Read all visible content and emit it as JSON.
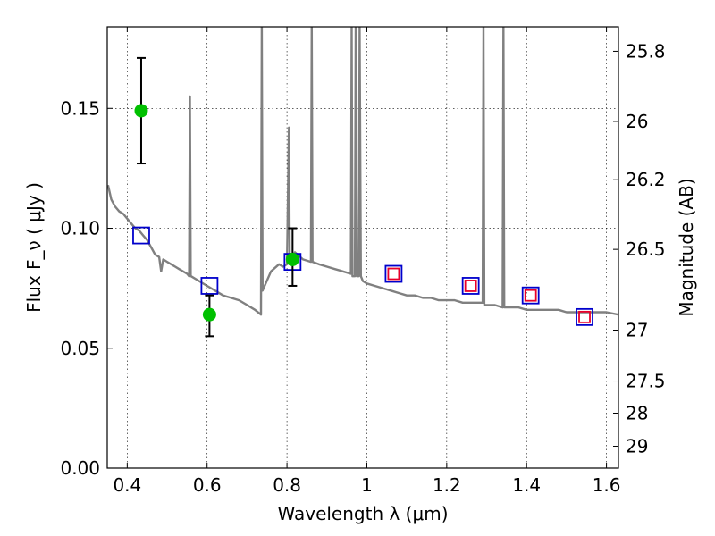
{
  "chart_data": {
    "type": "scatter",
    "xlabel": "Wavelength  λ (μm)",
    "ylabel": "Flux  F_ν  ( μJy )",
    "y2label": "Magnitude (AB)",
    "xlim": [
      0.35,
      1.63
    ],
    "ylim": [
      0.0,
      0.184
    ],
    "xticks": [
      0.4,
      0.6,
      0.8,
      1.0,
      1.2,
      1.4,
      1.6
    ],
    "xtick_labels": [
      "0.4",
      "0.6",
      "0.8",
      "1",
      "1.2",
      "1.4",
      "1.6"
    ],
    "yticks": [
      0.0,
      0.05,
      0.1,
      0.15
    ],
    "ytick_labels": [
      "0.00",
      "0.05",
      "0.10",
      "0.15"
    ],
    "y2ticks": [
      {
        "label": "25.8",
        "mag": 25.8
      },
      {
        "label": "26",
        "mag": 26.0
      },
      {
        "label": "26.2",
        "mag": 26.2
      },
      {
        "label": "26.5",
        "mag": 26.5
      },
      {
        "label": "27",
        "mag": 27.0
      },
      {
        "label": "27.5",
        "mag": 27.5
      },
      {
        "label": "28",
        "mag": 28.0
      },
      {
        "label": "29",
        "mag": 29.0
      }
    ],
    "grid": true,
    "series": [
      {
        "kind": "line",
        "color": "#808080",
        "points": [
          [
            0.352,
            0.118
          ],
          [
            0.36,
            0.112
          ],
          [
            0.37,
            0.109
          ],
          [
            0.38,
            0.107
          ],
          [
            0.39,
            0.106
          ],
          [
            0.4,
            0.104
          ],
          [
            0.41,
            0.102
          ],
          [
            0.42,
            0.1
          ],
          [
            0.43,
            0.099
          ],
          [
            0.44,
            0.097
          ],
          [
            0.45,
            0.095
          ],
          [
            0.46,
            0.092
          ],
          [
            0.47,
            0.089
          ],
          [
            0.48,
            0.088
          ],
          [
            0.485,
            0.082
          ],
          [
            0.49,
            0.087
          ],
          [
            0.5,
            0.086
          ],
          [
            0.51,
            0.085
          ],
          [
            0.52,
            0.084
          ],
          [
            0.53,
            0.083
          ],
          [
            0.54,
            0.082
          ],
          [
            0.55,
            0.081
          ],
          [
            0.555,
            0.08
          ],
          [
            0.557,
            0.155
          ],
          [
            0.559,
            0.08
          ],
          [
            0.56,
            0.08
          ],
          [
            0.58,
            0.078
          ],
          [
            0.6,
            0.076
          ],
          [
            0.62,
            0.074
          ],
          [
            0.64,
            0.072
          ],
          [
            0.66,
            0.071
          ],
          [
            0.68,
            0.07
          ],
          [
            0.7,
            0.068
          ],
          [
            0.72,
            0.066
          ],
          [
            0.735,
            0.064
          ],
          [
            0.737,
            0.184
          ],
          [
            0.739,
            0.074
          ],
          [
            0.76,
            0.082
          ],
          [
            0.78,
            0.085
          ],
          [
            0.79,
            0.084
          ],
          [
            0.8,
            0.085
          ],
          [
            0.805,
            0.142
          ],
          [
            0.807,
            0.085
          ],
          [
            0.82,
            0.09
          ],
          [
            0.84,
            0.087
          ],
          [
            0.86,
            0.086
          ],
          [
            0.862,
            0.184
          ],
          [
            0.864,
            0.086
          ],
          [
            0.88,
            0.085
          ],
          [
            0.9,
            0.084
          ],
          [
            0.92,
            0.083
          ],
          [
            0.94,
            0.082
          ],
          [
            0.96,
            0.081
          ],
          [
            0.962,
            0.184
          ],
          [
            0.964,
            0.08
          ],
          [
            0.97,
            0.08
          ],
          [
            0.972,
            0.184
          ],
          [
            0.975,
            0.08
          ],
          [
            0.98,
            0.08
          ],
          [
            0.982,
            0.184
          ],
          [
            0.985,
            0.08
          ],
          [
            0.99,
            0.078
          ],
          [
            1.0,
            0.077
          ],
          [
            1.02,
            0.076
          ],
          [
            1.04,
            0.075
          ],
          [
            1.06,
            0.074
          ],
          [
            1.08,
            0.073
          ],
          [
            1.1,
            0.072
          ],
          [
            1.12,
            0.072
          ],
          [
            1.14,
            0.071
          ],
          [
            1.16,
            0.071
          ],
          [
            1.18,
            0.07
          ],
          [
            1.2,
            0.07
          ],
          [
            1.22,
            0.07
          ],
          [
            1.24,
            0.069
          ],
          [
            1.26,
            0.069
          ],
          [
            1.28,
            0.069
          ],
          [
            1.29,
            0.069
          ],
          [
            1.292,
            0.184
          ],
          [
            1.294,
            0.068
          ],
          [
            1.3,
            0.068
          ],
          [
            1.32,
            0.068
          ],
          [
            1.34,
            0.067
          ],
          [
            1.342,
            0.184
          ],
          [
            1.344,
            0.067
          ],
          [
            1.36,
            0.067
          ],
          [
            1.38,
            0.067
          ],
          [
            1.4,
            0.066
          ],
          [
            1.42,
            0.066
          ],
          [
            1.44,
            0.066
          ],
          [
            1.46,
            0.066
          ],
          [
            1.48,
            0.066
          ],
          [
            1.5,
            0.065
          ],
          [
            1.52,
            0.065
          ],
          [
            1.54,
            0.065
          ],
          [
            1.56,
            0.065
          ],
          [
            1.58,
            0.065
          ],
          [
            1.6,
            0.065
          ],
          [
            1.63,
            0.064
          ]
        ]
      },
      {
        "kind": "points",
        "marker": "square-open",
        "color": "#0000cc",
        "points": [
          [
            0.435,
            0.097
          ],
          [
            0.606,
            0.076
          ],
          [
            0.814,
            0.086
          ],
          [
            1.067,
            0.081
          ],
          [
            1.26,
            0.076
          ],
          [
            1.41,
            0.072
          ],
          [
            1.545,
            0.063
          ]
        ]
      },
      {
        "kind": "points",
        "marker": "square-open",
        "color": "#e8002a",
        "points": [
          [
            1.067,
            0.081
          ],
          [
            1.26,
            0.076
          ],
          [
            1.41,
            0.072
          ],
          [
            1.545,
            0.063
          ]
        ]
      },
      {
        "kind": "points",
        "marker": "circle",
        "color": "#00c000",
        "points": [
          [
            0.435,
            0.149
          ],
          [
            0.606,
            0.064
          ],
          [
            0.814,
            0.087
          ]
        ],
        "errors": [
          [
            0.127,
            0.171
          ],
          [
            0.055,
            0.072
          ],
          [
            0.076,
            0.1
          ]
        ]
      }
    ]
  }
}
